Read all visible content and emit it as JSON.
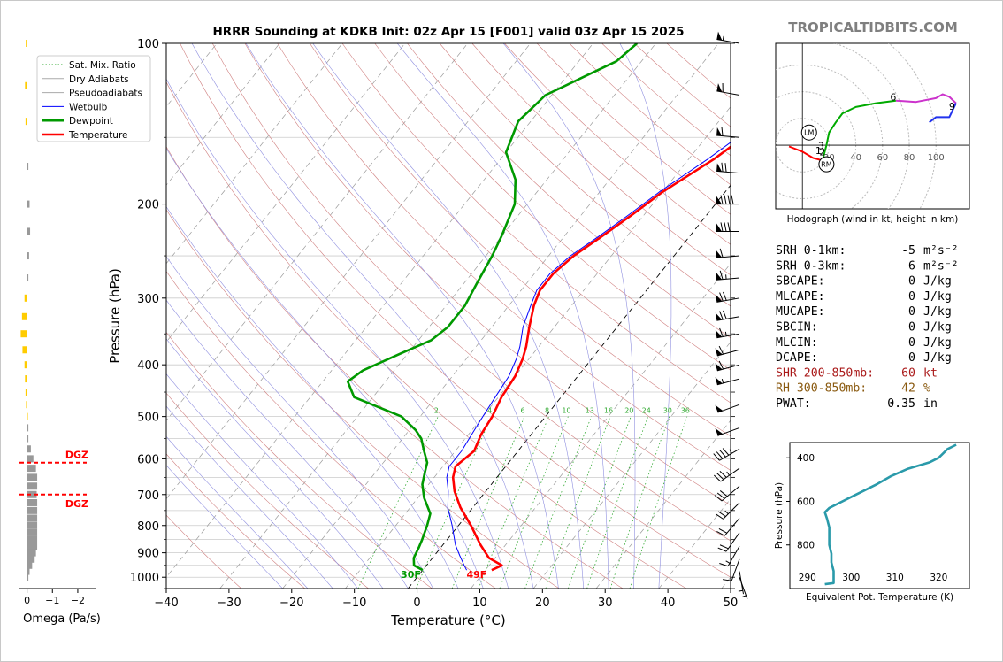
{
  "title": "HRRR Sounding at KDKB Init: 02z Apr 15 [F001] valid 03z Apr 15 2025",
  "brand": "TROPICALTIDBITS.COM",
  "chart_data": [
    {
      "type": "line",
      "name": "skewt",
      "xlabel": "Temperature (°C)",
      "ylabel": "Pressure (hPa)",
      "xlim": [
        -40,
        50
      ],
      "ylim": [
        1050,
        100
      ],
      "yscale": "log",
      "xticks": [
        -40,
        -30,
        -20,
        -10,
        0,
        10,
        20,
        30,
        40,
        50
      ],
      "yticks": [
        100,
        200,
        300,
        400,
        500,
        600,
        700,
        800,
        900,
        1000
      ],
      "legend": {
        "placement": "top-left",
        "entries": [
          "Sat. Mix. Ratio",
          "Dry Adiabats",
          "Pseudoadiabats",
          "Wetbulb",
          "Dewpoint",
          "Temperature"
        ]
      },
      "mixing_ratio_labels": [
        "2",
        "4",
        "6",
        "8",
        "10",
        "13",
        "16",
        "20",
        "24",
        "30",
        "36"
      ],
      "mixing_ratio_values": [
        2,
        4,
        6,
        8,
        10,
        13,
        16,
        20,
        24,
        30,
        36
      ],
      "series": [
        {
          "name": "Temperature",
          "color": "#ff0000",
          "points": [
            [
              11,
              970
            ],
            [
              12,
              950
            ],
            [
              9,
              920
            ],
            [
              6,
              870
            ],
            [
              2,
              800
            ],
            [
              -2,
              740
            ],
            [
              -5,
              690
            ],
            [
              -7,
              650
            ],
            [
              -8,
              620
            ],
            [
              -7,
              580
            ],
            [
              -8,
              540
            ],
            [
              -8.5,
              500
            ],
            [
              -9.5,
              460
            ],
            [
              -10,
              420
            ],
            [
              -11,
              390
            ],
            [
              -12,
              370
            ],
            [
              -14,
              340
            ],
            [
              -16,
              310
            ],
            [
              -17,
              290
            ],
            [
              -17,
              270
            ],
            [
              -16,
              250
            ],
            [
              -14,
              230
            ],
            [
              -12,
              210
            ],
            [
              -10,
              190
            ],
            [
              -6,
              165
            ],
            [
              -4,
              150
            ],
            [
              -3,
              135
            ],
            [
              -3,
              115
            ],
            [
              -2,
              100
            ]
          ]
        },
        {
          "name": "Wetbulb",
          "color": "#0000ff",
          "points": [
            [
              7,
              970
            ],
            [
              6,
              950
            ],
            [
              4,
              910
            ],
            [
              2,
              870
            ],
            [
              -1,
              800
            ],
            [
              -4,
              740
            ],
            [
              -6,
              690
            ],
            [
              -8,
              650
            ],
            [
              -9,
              620
            ],
            [
              -9,
              580
            ],
            [
              -9.5,
              540
            ],
            [
              -10,
              500
            ],
            [
              -10.5,
              460
            ],
            [
              -11,
              420
            ],
            [
              -12,
              390
            ],
            [
              -13,
              370
            ],
            [
              -15,
              340
            ],
            [
              -16.5,
              310
            ],
            [
              -17.5,
              290
            ],
            [
              -17.5,
              270
            ],
            [
              -16.5,
              250
            ],
            [
              -14.5,
              230
            ],
            [
              -12.5,
              210
            ],
            [
              -10.5,
              190
            ],
            [
              -7,
              165
            ],
            [
              -5,
              150
            ],
            [
              -3.5,
              135
            ],
            [
              -3,
              115
            ],
            [
              -2.5,
              100
            ]
          ]
        },
        {
          "name": "Dewpoint",
          "color": "#009900",
          "points": [
            [
              0,
              970
            ],
            [
              -2,
              950
            ],
            [
              -3,
              920
            ],
            [
              -3.5,
              880
            ],
            [
              -4,
              850
            ],
            [
              -5,
              800
            ],
            [
              -6,
              760
            ],
            [
              -9,
              710
            ],
            [
              -11,
              670
            ],
            [
              -12,
              640
            ],
            [
              -13,
              610
            ],
            [
              -15,
              580
            ],
            [
              -17,
              550
            ],
            [
              -19,
              530
            ],
            [
              -23,
              500
            ],
            [
              -33,
              460
            ],
            [
              -36,
              430
            ],
            [
              -35,
              410
            ],
            [
              -31,
              380
            ],
            [
              -28,
              360
            ],
            [
              -27,
              340
            ],
            [
              -27,
              310
            ],
            [
              -28,
              280
            ],
            [
              -29,
              250
            ],
            [
              -30,
              230
            ],
            [
              -32,
              200
            ],
            [
              -35,
              180
            ],
            [
              -40,
              160
            ],
            [
              -42,
              140
            ],
            [
              -41,
              125
            ],
            [
              -37,
              115
            ],
            [
              -34,
              108
            ],
            [
              -33,
              100
            ]
          ]
        }
      ],
      "surface_labels": [
        {
          "text": "30F",
          "color": "#009900",
          "temp": -1,
          "pressure": 1000
        },
        {
          "text": "49F",
          "color": "#ff0000",
          "temp": 9.5,
          "pressure": 1000
        }
      ]
    },
    {
      "type": "bar",
      "name": "omega",
      "xlabel": "Omega (Pa/s)",
      "xlim": [
        0.3,
        -2.7
      ],
      "xticks": [
        0,
        -1,
        -2
      ],
      "xticklabels": [
        "0",
        "−1",
        "−2"
      ],
      "dgz_label": "DGZ",
      "dgz_pressures": [
        610,
        700
      ],
      "bars": [
        {
          "p": 100,
          "v": 0.05,
          "c": "#ffcc00"
        },
        {
          "p": 120,
          "v": 0.08,
          "c": "#ffcc00"
        },
        {
          "p": 140,
          "v": 0.06,
          "c": "#ffcc00"
        },
        {
          "p": 170,
          "v": -0.04,
          "c": "#999999"
        },
        {
          "p": 200,
          "v": -0.1,
          "c": "#999999"
        },
        {
          "p": 225,
          "v": -0.12,
          "c": "#999999"
        },
        {
          "p": 250,
          "v": -0.08,
          "c": "#999999"
        },
        {
          "p": 275,
          "v": -0.05,
          "c": "#999999"
        },
        {
          "p": 300,
          "v": 0.1,
          "c": "#ffcc00"
        },
        {
          "p": 325,
          "v": 0.2,
          "c": "#ffcc00"
        },
        {
          "p": 350,
          "v": 0.25,
          "c": "#ffcc00"
        },
        {
          "p": 375,
          "v": 0.18,
          "c": "#ffcc00"
        },
        {
          "p": 400,
          "v": 0.1,
          "c": "#ffcc00"
        },
        {
          "p": 425,
          "v": 0.08,
          "c": "#ffcc00"
        },
        {
          "p": 450,
          "v": 0.06,
          "c": "#ffcc00"
        },
        {
          "p": 475,
          "v": 0.04,
          "c": "#ffcc00"
        },
        {
          "p": 500,
          "v": 0.02,
          "c": "#ffcc00"
        },
        {
          "p": 525,
          "v": -0.02,
          "c": "#999999"
        },
        {
          "p": 550,
          "v": -0.05,
          "c": "#999999"
        },
        {
          "p": 575,
          "v": -0.15,
          "c": "#999999"
        },
        {
          "p": 600,
          "v": -0.25,
          "c": "#999999"
        },
        {
          "p": 625,
          "v": -0.35,
          "c": "#999999"
        },
        {
          "p": 650,
          "v": -0.4,
          "c": "#999999"
        },
        {
          "p": 675,
          "v": -0.4,
          "c": "#999999"
        },
        {
          "p": 700,
          "v": -0.38,
          "c": "#999999"
        },
        {
          "p": 725,
          "v": -0.4,
          "c": "#999999"
        },
        {
          "p": 750,
          "v": -0.4,
          "c": "#999999"
        },
        {
          "p": 775,
          "v": -0.4,
          "c": "#999999"
        },
        {
          "p": 800,
          "v": -0.4,
          "c": "#999999"
        },
        {
          "p": 825,
          "v": -0.4,
          "c": "#999999"
        },
        {
          "p": 850,
          "v": -0.4,
          "c": "#999999"
        },
        {
          "p": 875,
          "v": -0.4,
          "c": "#999999"
        },
        {
          "p": 900,
          "v": -0.35,
          "c": "#999999"
        },
        {
          "p": 925,
          "v": -0.3,
          "c": "#999999"
        },
        {
          "p": 950,
          "v": -0.2,
          "c": "#999999"
        },
        {
          "p": 975,
          "v": -0.1,
          "c": "#999999"
        },
        {
          "p": 1000,
          "v": -0.02,
          "c": "#999999"
        }
      ]
    },
    {
      "type": "line",
      "name": "wind_barbs",
      "note_units": "kt",
      "levels": [
        {
          "p": 100,
          "dir": 280,
          "spd": 55
        },
        {
          "p": 125,
          "dir": 280,
          "spd": 60
        },
        {
          "p": 150,
          "dir": 275,
          "spd": 60
        },
        {
          "p": 175,
          "dir": 275,
          "spd": 70
        },
        {
          "p": 200,
          "dir": 270,
          "spd": 90
        },
        {
          "p": 225,
          "dir": 270,
          "spd": 80
        },
        {
          "p": 250,
          "dir": 265,
          "spd": 60
        },
        {
          "p": 275,
          "dir": 265,
          "spd": 65
        },
        {
          "p": 300,
          "dir": 260,
          "spd": 70
        },
        {
          "p": 325,
          "dir": 260,
          "spd": 70
        },
        {
          "p": 350,
          "dir": 260,
          "spd": 65
        },
        {
          "p": 375,
          "dir": 255,
          "spd": 60
        },
        {
          "p": 400,
          "dir": 255,
          "spd": 60
        },
        {
          "p": 425,
          "dir": 255,
          "spd": 55
        },
        {
          "p": 475,
          "dir": 250,
          "spd": 50
        },
        {
          "p": 525,
          "dir": 250,
          "spd": 50
        },
        {
          "p": 575,
          "dir": 240,
          "spd": 45
        },
        {
          "p": 625,
          "dir": 235,
          "spd": 35
        },
        {
          "p": 675,
          "dir": 230,
          "spd": 30
        },
        {
          "p": 725,
          "dir": 225,
          "spd": 25
        },
        {
          "p": 775,
          "dir": 220,
          "spd": 20
        },
        {
          "p": 825,
          "dir": 215,
          "spd": 20
        },
        {
          "p": 875,
          "dir": 210,
          "spd": 15
        },
        {
          "p": 925,
          "dir": 200,
          "spd": 10
        },
        {
          "p": 975,
          "dir": 170,
          "spd": 5
        },
        {
          "p": 1000,
          "dir": 160,
          "spd": 5
        }
      ]
    },
    {
      "type": "line",
      "name": "hodograph",
      "xlabel": "Hodograph (wind in kt, height in km)",
      "xlim": [
        -20,
        125
      ],
      "ylim": [
        -50,
        80
      ],
      "rings": [
        20,
        40,
        60,
        80,
        100
      ],
      "ring_labels": [
        "20",
        "40",
        "60",
        "80",
        "100"
      ],
      "segments": [
        {
          "color": "#ff0000",
          "points": [
            [
              -10,
              -1
            ],
            [
              0,
              -5
            ],
            [
              8,
              -10
            ],
            [
              15,
              -12
            ]
          ]
        },
        {
          "color": "#00aa00",
          "points": [
            [
              15,
              -12
            ],
            [
              18,
              0
            ],
            [
              20,
              10
            ],
            [
              25,
              18
            ],
            [
              30,
              25
            ],
            [
              40,
              30
            ],
            [
              55,
              33
            ],
            [
              70,
              35
            ]
          ]
        },
        {
          "color": "#cc33cc",
          "points": [
            [
              70,
              35
            ],
            [
              85,
              34
            ],
            [
              100,
              37
            ],
            [
              105,
              40
            ],
            [
              110,
              38
            ],
            [
              115,
              33
            ]
          ]
        },
        {
          "color": "#2233ee",
          "points": [
            [
              115,
              33
            ],
            [
              110,
              22
            ],
            [
              100,
              22
            ],
            [
              95,
              18
            ]
          ]
        }
      ],
      "height_labels": [
        {
          "text": "1",
          "u": 12,
          "v": -7
        },
        {
          "text": "2",
          "u": 15,
          "v": -8
        },
        {
          "text": "3",
          "u": 14,
          "v": -3
        },
        {
          "text": "6",
          "u": 68,
          "v": 35
        },
        {
          "text": "9",
          "u": 112,
          "v": 28
        }
      ],
      "markers": [
        {
          "text": "LM",
          "u": 5,
          "v": 10
        },
        {
          "text": "RM",
          "u": 18,
          "v": -15
        }
      ]
    },
    {
      "type": "line",
      "name": "theta_e",
      "xlabel": "Equivalent Pot. Temperature (K)",
      "ylabel": "Pressure (hPa)",
      "xlim": [
        286,
        327
      ],
      "ylim": [
        1000,
        330
      ],
      "xticks": [
        290,
        300,
        310,
        320
      ],
      "yticks": [
        400,
        600,
        800
      ],
      "color": "#2a9aaa",
      "points": [
        [
          294,
          980
        ],
        [
          296,
          975
        ],
        [
          296,
          960
        ],
        [
          296,
          920
        ],
        [
          295.5,
          880
        ],
        [
          295.5,
          840
        ],
        [
          295,
          800
        ],
        [
          295,
          760
        ],
        [
          295,
          720
        ],
        [
          294.5,
          680
        ],
        [
          294,
          650
        ],
        [
          295,
          630
        ],
        [
          297,
          610
        ],
        [
          300,
          580
        ],
        [
          303,
          550
        ],
        [
          306,
          520
        ],
        [
          309,
          485
        ],
        [
          313,
          450
        ],
        [
          318,
          420
        ],
        [
          320,
          400
        ],
        [
          321,
          380
        ],
        [
          322,
          360
        ],
        [
          324,
          340
        ]
      ]
    }
  ],
  "stats": [
    {
      "label": "SRH 0-1km:",
      "value": "-5",
      "unit": "m²s⁻²",
      "color": "#000000"
    },
    {
      "label": "SRH 0-3km:",
      "value": "6",
      "unit": "m²s⁻²",
      "color": "#000000"
    },
    {
      "label": "SBCAPE:",
      "value": "0",
      "unit": "J/kg",
      "color": "#000000"
    },
    {
      "label": "MLCAPE:",
      "value": "0",
      "unit": "J/kg",
      "color": "#000000"
    },
    {
      "label": "MUCAPE:",
      "value": "0",
      "unit": "J/kg",
      "color": "#000000"
    },
    {
      "label": "SBCIN:",
      "value": "0",
      "unit": "J/kg",
      "color": "#000000"
    },
    {
      "label": "MLCIN:",
      "value": "0",
      "unit": "J/kg",
      "color": "#000000"
    },
    {
      "label": "DCAPE:",
      "value": "0",
      "unit": "J/kg",
      "color": "#000000"
    },
    {
      "label": "SHR 200-850mb:",
      "value": "60",
      "unit": "kt",
      "color": "#aa1a1a"
    },
    {
      "label": "RH 300-850mb:",
      "value": "42",
      "unit": "%",
      "color": "#8a5a10"
    },
    {
      "label": "PWAT:",
      "value": "0.35",
      "unit": "in",
      "color": "#000000"
    }
  ],
  "colors": {
    "temperature": "#ff0000",
    "dewpoint": "#009900",
    "wetbulb": "#0000ff",
    "dry_adiabat": "#d08080",
    "moist_adiabat": "#9090e0",
    "mixing_ratio": "#33aa33",
    "isotherm": "#888888",
    "brand": "#7f7f7f"
  }
}
